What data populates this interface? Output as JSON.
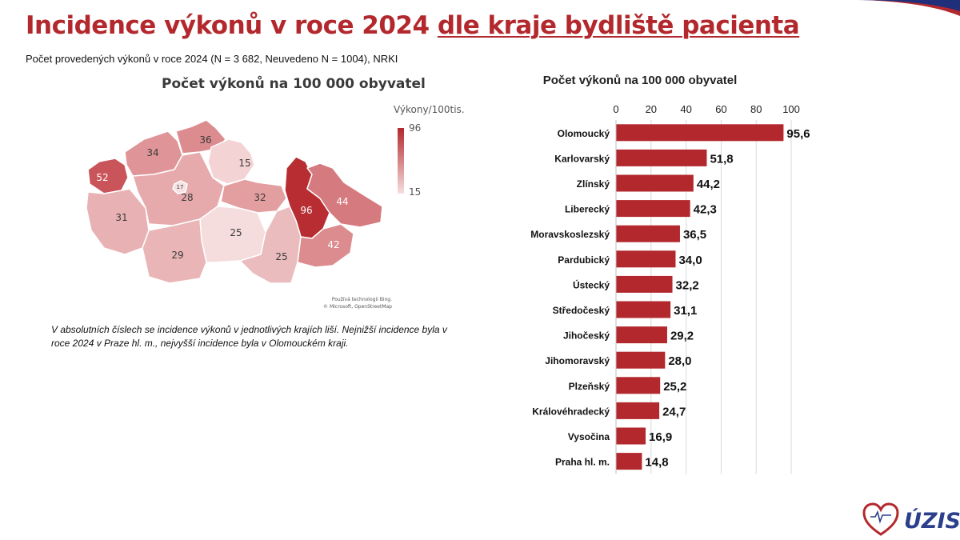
{
  "header": {
    "title_part1": "Incidence výkonů v roce 2024 ",
    "title_part2": "dle kraje bydliště pacienta",
    "subtitle": "Počet provedených výkonů v roce 2024 (N = 3 682, Neuvedeno N = 1004), NRKI"
  },
  "map": {
    "title": "Počet výkonů na 100 000 obyvatel",
    "legend_title": "Výkony/100tis.",
    "legend_max": "96",
    "legend_min": "15",
    "attribution_line1": "Používá technologii Bing.",
    "attribution_line2": "© Microsoft, OpenStreetMap",
    "region_labels": [
      "52",
      "34",
      "36",
      "15",
      "17",
      "28",
      "32",
      "96",
      "44",
      "31",
      "25",
      "29",
      "25",
      "42"
    ]
  },
  "note": "V absolutních číslech se incidence výkonů v jednotlivých krajích liší. Nejnižší incidence byla v roce 2024 v Praze hl. m., nejvyšší incidence byla v Olomouckém kraji.",
  "logo": {
    "text": "ÚZIS"
  },
  "colors": {
    "accent": "#b3282d",
    "bar": "#b3282d",
    "navy": "#2b3f8c"
  },
  "chart_data": {
    "type": "bar",
    "orientation": "horizontal",
    "title": "Počet výkonů na 100 000 obyvatel",
    "xlim": [
      0,
      105
    ],
    "ticks": [
      0,
      20,
      40,
      60,
      80,
      100
    ],
    "categories": [
      "Olomoucký",
      "Karlovarský",
      "Zlínský",
      "Liberecký",
      "Moravskoslezský",
      "Pardubický",
      "Ústecký",
      "Středočeský",
      "Jihočeský",
      "Jihomoravský",
      "Plzeňský",
      "Královéhradecký",
      "Vysočina",
      "Praha hl. m."
    ],
    "values": [
      95.6,
      51.8,
      44.2,
      42.3,
      36.5,
      34.0,
      32.2,
      31.1,
      29.2,
      28.0,
      25.2,
      24.7,
      16.9,
      14.8
    ],
    "value_labels": [
      "95,6",
      "51,8",
      "44,2",
      "42,3",
      "36,5",
      "34,0",
      "32,2",
      "31,1",
      "29,2",
      "28,0",
      "25,2",
      "24,7",
      "16,9",
      "14,8"
    ],
    "grid": true
  }
}
